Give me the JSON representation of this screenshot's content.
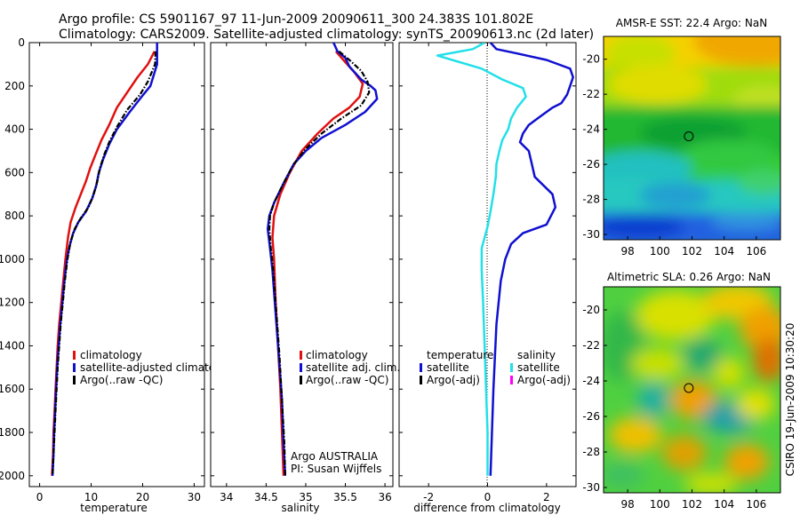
{
  "header": {
    "line1": "Argo profile: CS 5901167_97 11-Jun-2009 20090611_300 24.383S 101.802E",
    "line2": "Climatology: CARS2009. Satellite-adjusted climatology: synTS_20090613.nc (2d later)"
  },
  "colors": {
    "clim": "#e01010",
    "sat": "#1010d0",
    "argo": "#000000",
    "sal_sat": "#22e0e8",
    "sal_argo": "#ff00ff"
  },
  "chart_data": [
    {
      "type": "line",
      "name": "temperature-profile",
      "xlabel": "temperature",
      "ylabel": "",
      "xlim": [
        -2,
        32
      ],
      "ylim": [
        2050,
        0
      ],
      "y_reversed": true,
      "xticks": [
        0,
        10,
        20,
        30
      ],
      "yticks": [
        0,
        200,
        400,
        600,
        800,
        1000,
        1200,
        1400,
        1600,
        1800,
        2000
      ],
      "legend": [
        "climatology",
        "satellite-adjusted climatology",
        "Argo(..raw -QC)"
      ],
      "series": [
        {
          "name": "climatology",
          "color": "#e01010",
          "style": "solid",
          "points": [
            [
              22.3,
              40
            ],
            [
              21,
              100
            ],
            [
              19,
              160
            ],
            [
              17,
              230
            ],
            [
              15,
              300
            ],
            [
              13.5,
              380
            ],
            [
              12,
              450
            ],
            [
              10.8,
              520
            ],
            [
              9.8,
              580
            ],
            [
              9,
              640
            ],
            [
              8,
              700
            ],
            [
              7,
              760
            ],
            [
              6,
              830
            ],
            [
              5.5,
              900
            ],
            [
              5,
              1000
            ],
            [
              4.6,
              1100
            ],
            [
              4.2,
              1200
            ],
            [
              3.8,
              1300
            ],
            [
              3.5,
              1400
            ],
            [
              3.3,
              1500
            ],
            [
              3.1,
              1600
            ],
            [
              2.9,
              1700
            ],
            [
              2.7,
              1800
            ],
            [
              2.6,
              1900
            ],
            [
              2.4,
              2000
            ]
          ]
        },
        {
          "name": "satellite",
          "color": "#1010d0",
          "style": "solid",
          "points": [
            [
              22.8,
              0
            ],
            [
              22.8,
              100
            ],
            [
              21.5,
              200
            ],
            [
              19.8,
              250
            ],
            [
              17.5,
              320
            ],
            [
              15,
              400
            ],
            [
              13.5,
              470
            ],
            [
              12.3,
              540
            ],
            [
              11.5,
              600
            ],
            [
              11,
              660
            ],
            [
              10.2,
              720
            ],
            [
              9,
              780
            ],
            [
              7.5,
              830
            ],
            [
              6.5,
              880
            ],
            [
              5.8,
              940
            ],
            [
              5.3,
              1000
            ],
            [
              4.8,
              1100
            ],
            [
              4.4,
              1200
            ],
            [
              4,
              1300
            ],
            [
              3.7,
              1400
            ],
            [
              3.4,
              1500
            ],
            [
              3.2,
              1600
            ],
            [
              3,
              1700
            ],
            [
              2.8,
              1800
            ],
            [
              2.7,
              1900
            ],
            [
              2.5,
              2000
            ]
          ]
        },
        {
          "name": "argo",
          "color": "#000000",
          "style": "dashdot",
          "points": [
            [
              22.5,
              40
            ],
            [
              22.4,
              100
            ],
            [
              21,
              180
            ],
            [
              19.5,
              240
            ],
            [
              17,
              310
            ],
            [
              15,
              390
            ],
            [
              13.5,
              460
            ],
            [
              12.5,
              520
            ],
            [
              11.7,
              580
            ],
            [
              11.2,
              640
            ],
            [
              10.5,
              700
            ],
            [
              9.5,
              760
            ],
            [
              8,
              810
            ],
            [
              6.8,
              860
            ],
            [
              6,
              920
            ],
            [
              5.4,
              1000
            ],
            [
              4.9,
              1100
            ],
            [
              4.5,
              1200
            ],
            [
              4.1,
              1300
            ],
            [
              3.8,
              1400
            ],
            [
              3.5,
              1500
            ],
            [
              3.3,
              1600
            ],
            [
              3.1,
              1700
            ],
            [
              2.9,
              1800
            ],
            [
              2.7,
              1900
            ],
            [
              2.5,
              2000
            ]
          ]
        }
      ]
    },
    {
      "type": "line",
      "name": "salinity-profile",
      "xlabel": "salinity",
      "ylabel": "",
      "xlim": [
        33.8,
        36.1
      ],
      "ylim": [
        2050,
        0
      ],
      "y_reversed": true,
      "xticks": [
        34,
        34.5,
        35,
        35.5,
        36
      ],
      "yticks": [
        0,
        200,
        400,
        600,
        800,
        1000,
        1200,
        1400,
        1600,
        1800,
        2000
      ],
      "legend": [
        "climatology",
        "satellite adj. clim.",
        "Argo(..raw -QC)"
      ],
      "note_lines": [
        "Argo AUSTRALIA",
        "PI: Susan Wijffels"
      ],
      "series": [
        {
          "name": "climatology",
          "color": "#e01010",
          "style": "solid",
          "points": [
            [
              35.38,
              40
            ],
            [
              35.5,
              90
            ],
            [
              35.62,
              140
            ],
            [
              35.72,
              190
            ],
            [
              35.68,
              250
            ],
            [
              35.55,
              300
            ],
            [
              35.35,
              350
            ],
            [
              35.15,
              420
            ],
            [
              34.95,
              500
            ],
            [
              34.8,
              600
            ],
            [
              34.68,
              700
            ],
            [
              34.6,
              800
            ],
            [
              34.58,
              900
            ],
            [
              34.6,
              1000
            ],
            [
              34.62,
              1200
            ],
            [
              34.65,
              1400
            ],
            [
              34.68,
              1600
            ],
            [
              34.7,
              1800
            ],
            [
              34.72,
              2000
            ]
          ]
        },
        {
          "name": "satellite",
          "color": "#1010d0",
          "style": "solid",
          "points": [
            [
              35.35,
              0
            ],
            [
              35.4,
              40
            ],
            [
              35.5,
              70
            ],
            [
              35.55,
              110
            ],
            [
              35.7,
              170
            ],
            [
              35.82,
              200
            ],
            [
              35.88,
              220
            ],
            [
              35.9,
              260
            ],
            [
              35.75,
              320
            ],
            [
              35.5,
              380
            ],
            [
              35.2,
              440
            ],
            [
              35,
              500
            ],
            [
              34.85,
              560
            ],
            [
              34.72,
              650
            ],
            [
              34.6,
              740
            ],
            [
              34.54,
              800
            ],
            [
              34.52,
              860
            ],
            [
              34.55,
              950
            ],
            [
              34.58,
              1050
            ],
            [
              34.62,
              1250
            ],
            [
              34.66,
              1450
            ],
            [
              34.7,
              1650
            ],
            [
              34.72,
              1850
            ],
            [
              34.74,
              2000
            ]
          ]
        },
        {
          "name": "argo",
          "color": "#000000",
          "style": "dashdot",
          "points": [
            [
              35.42,
              40
            ],
            [
              35.55,
              80
            ],
            [
              35.7,
              130
            ],
            [
              35.78,
              180
            ],
            [
              35.8,
              230
            ],
            [
              35.7,
              290
            ],
            [
              35.45,
              350
            ],
            [
              35.2,
              420
            ],
            [
              35,
              490
            ],
            [
              34.85,
              560
            ],
            [
              34.72,
              650
            ],
            [
              34.6,
              740
            ],
            [
              34.55,
              800
            ],
            [
              34.54,
              860
            ],
            [
              34.56,
              950
            ],
            [
              34.59,
              1050
            ],
            [
              34.63,
              1250
            ],
            [
              34.67,
              1450
            ],
            [
              34.7,
              1650
            ],
            [
              34.73,
              1850
            ],
            [
              34.74,
              2000
            ]
          ]
        }
      ]
    },
    {
      "type": "line",
      "name": "difference-profile",
      "xlabel": "difference from climatology",
      "ylabel": "",
      "xlim": [
        -3,
        3
      ],
      "ylim": [
        2050,
        0
      ],
      "y_reversed": true,
      "xticks": [
        -2,
        0,
        2
      ],
      "yticks": [
        0,
        200,
        400,
        600,
        800,
        1000,
        1200,
        1400,
        1600,
        1800,
        2000
      ],
      "legend_temperature_title": "temperature",
      "legend_salinity_title": "salinity",
      "legend_temperature": [
        "satellite",
        "Argo(-adj)"
      ],
      "legend_salinity": [
        "satellite",
        "Argo(-adj)"
      ],
      "series": [
        {
          "name": "temperature satellite",
          "color": "#1010d0",
          "style": "solid",
          "points": [
            [
              0.1,
              0
            ],
            [
              0.3,
              30
            ],
            [
              1,
              50
            ],
            [
              2,
              80
            ],
            [
              2.8,
              120
            ],
            [
              2.9,
              160
            ],
            [
              2.8,
              200
            ],
            [
              2.7,
              240
            ],
            [
              2.5,
              280
            ],
            [
              2.2,
              300
            ],
            [
              1.8,
              340
            ],
            [
              1.4,
              380
            ],
            [
              1.2,
              420
            ],
            [
              1.1,
              460
            ],
            [
              1.4,
              500
            ],
            [
              1.5,
              560
            ],
            [
              1.6,
              620
            ],
            [
              2.2,
              700
            ],
            [
              2.3,
              760
            ],
            [
              2,
              840
            ],
            [
              1.2,
              880
            ],
            [
              0.8,
              930
            ],
            [
              0.6,
              1000
            ],
            [
              0.45,
              1100
            ],
            [
              0.3,
              1300
            ],
            [
              0.2,
              1600
            ],
            [
              0.1,
              2000
            ]
          ]
        },
        {
          "name": "salinity satellite",
          "color": "#22e0e8",
          "style": "solid",
          "points": [
            [
              -0.1,
              0
            ],
            [
              -0.5,
              30
            ],
            [
              -1.7,
              60
            ],
            [
              -1.2,
              80
            ],
            [
              -0.2,
              120
            ],
            [
              0.5,
              170
            ],
            [
              1.2,
              210
            ],
            [
              1.3,
              250
            ],
            [
              1,
              300
            ],
            [
              0.8,
              350
            ],
            [
              0.7,
              400
            ],
            [
              0.5,
              450
            ],
            [
              0.4,
              500
            ],
            [
              0.3,
              560
            ],
            [
              0.28,
              620
            ],
            [
              0.2,
              700
            ],
            [
              0.1,
              780
            ],
            [
              0,
              850
            ],
            [
              -0.1,
              900
            ],
            [
              -0.2,
              950
            ],
            [
              -0.2,
              1050
            ],
            [
              -0.15,
              1200
            ],
            [
              -0.1,
              1400
            ],
            [
              -0.05,
              1600
            ],
            [
              0,
              1800
            ],
            [
              0,
              2000
            ]
          ]
        }
      ]
    },
    {
      "type": "heatmap",
      "name": "amsr-sst-map",
      "title": "AMSR-E SST: 22.4 Argo: NaN",
      "xticks": [
        98,
        100,
        102,
        104,
        106
      ],
      "yticks": [
        -20,
        -22,
        -24,
        -26,
        -28,
        -30
      ],
      "xlim": [
        96.5,
        107.5
      ],
      "ylim": [
        -30.3,
        -18.7
      ],
      "marker": {
        "lon": 101.8,
        "lat": -24.4
      }
    },
    {
      "type": "heatmap",
      "name": "altimetric-sla-map",
      "title": "Altimetric SLA: 0.26 Argo: NaN",
      "xticks": [
        98,
        100,
        102,
        104,
        106
      ],
      "yticks": [
        -20,
        -22,
        -24,
        -26,
        -28,
        -30
      ],
      "xlim": [
        96.5,
        107.5
      ],
      "ylim": [
        -30.3,
        -18.7
      ],
      "marker": {
        "lon": 101.8,
        "lat": -24.4
      },
      "side_label": "CSIRO 19-Jun-2009 10:30:20"
    }
  ]
}
